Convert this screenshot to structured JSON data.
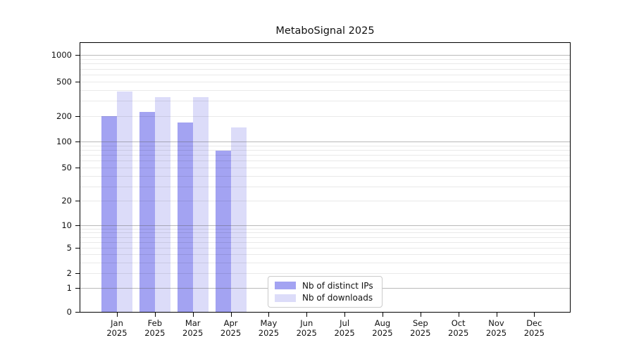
{
  "chart_data": {
    "type": "bar",
    "title": "MetaboSignal 2025",
    "categories": [
      "Jan",
      "Feb",
      "Mar",
      "Apr",
      "May",
      "Jun",
      "Jul",
      "Aug",
      "Sep",
      "Oct",
      "Nov",
      "Dec"
    ],
    "x_tick_second_line": "2025",
    "series": [
      {
        "name": "Nb of distinct IPs",
        "color": "#a3a3f2",
        "values": [
          197,
          220,
          169,
          79,
          0,
          0,
          0,
          0,
          0,
          0,
          0,
          0
        ]
      },
      {
        "name": "Nb of downloads",
        "color": "#dcdcf9",
        "values": [
          380,
          330,
          330,
          148,
          0,
          0,
          0,
          0,
          0,
          0,
          0,
          0
        ]
      }
    ],
    "y_ticks": [
      0,
      1,
      2,
      5,
      10,
      20,
      50,
      100,
      200,
      500,
      1000
    ],
    "y_minor_gridlines": [
      2,
      3,
      4,
      5,
      6,
      7,
      8,
      9,
      20,
      30,
      40,
      50,
      60,
      70,
      80,
      90,
      200,
      300,
      400,
      500,
      600,
      700,
      800,
      900
    ],
    "y_major_gridlines": [
      1,
      10,
      100,
      1000
    ],
    "y_scale": "log-like (log10(value+1.13), 0 at baseline)",
    "ylim": [
      0,
      1400
    ],
    "xlabel": "",
    "ylabel": "",
    "grid": "horizontal, drawn over bars",
    "legend_position": "inside, lower center-left"
  },
  "colors": {
    "background": "#ffffff",
    "axis": "#000000",
    "grid_major": "#b3b3b3",
    "grid_minor": "#e8e8e8",
    "bar_distinct_ips": "#a3a3f2",
    "bar_downloads": "#dcdcf9",
    "legend_border": "#cbcbcb",
    "text": "#111111"
  }
}
